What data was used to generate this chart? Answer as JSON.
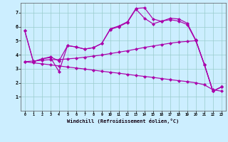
{
  "xlabel": "Windchill (Refroidissement éolien,°C)",
  "bg_color": "#cceeff",
  "line_color": "#aa00aa",
  "grid_color": "#99cccc",
  "xlim": [
    -0.5,
    23.5
  ],
  "ylim": [
    0,
    7.7
  ],
  "xticks": [
    0,
    1,
    2,
    3,
    4,
    5,
    6,
    7,
    8,
    9,
    10,
    11,
    12,
    13,
    14,
    15,
    16,
    17,
    18,
    19,
    20,
    21,
    22,
    23
  ],
  "yticks": [
    1,
    2,
    3,
    4,
    5,
    6,
    7
  ],
  "line1": {
    "x": [
      0,
      1,
      2,
      3,
      4,
      5,
      6,
      7,
      8,
      9,
      10,
      11,
      12,
      13,
      14,
      15,
      16,
      17,
      18,
      19,
      20,
      21,
      22,
      23
    ],
    "y": [
      5.7,
      3.5,
      3.7,
      3.8,
      2.8,
      4.65,
      4.55,
      4.4,
      4.5,
      4.8,
      5.8,
      6.0,
      6.3,
      7.25,
      6.6,
      6.2,
      6.4,
      6.5,
      6.4,
      6.15,
      5.0,
      3.3,
      1.4,
      1.7
    ]
  },
  "line2": {
    "x": [
      0,
      1,
      2,
      3,
      4,
      5,
      6,
      7,
      8,
      9,
      10,
      11,
      12,
      13,
      14,
      15,
      16,
      17,
      18,
      19,
      20,
      21,
      22,
      23
    ],
    "y": [
      5.7,
      3.5,
      3.7,
      3.85,
      3.55,
      4.65,
      4.55,
      4.4,
      4.5,
      4.8,
      5.85,
      6.05,
      6.35,
      7.3,
      7.35,
      6.55,
      6.38,
      6.6,
      6.55,
      6.25,
      5.05,
      3.3,
      1.4,
      1.7
    ]
  },
  "line3": {
    "x": [
      0,
      1,
      2,
      3,
      4,
      5,
      6,
      7,
      8,
      9,
      10,
      11,
      12,
      13,
      14,
      15,
      16,
      17,
      18,
      19,
      20,
      21,
      22,
      23
    ],
    "y": [
      3.5,
      3.55,
      3.6,
      3.65,
      3.65,
      3.7,
      3.75,
      3.82,
      3.9,
      3.98,
      4.08,
      4.18,
      4.28,
      4.4,
      4.52,
      4.62,
      4.72,
      4.82,
      4.9,
      4.95,
      5.0,
      3.3,
      1.4,
      1.7
    ]
  },
  "line4": {
    "x": [
      0,
      1,
      2,
      3,
      4,
      5,
      6,
      7,
      8,
      9,
      10,
      11,
      12,
      13,
      14,
      15,
      16,
      17,
      18,
      19,
      20,
      21,
      22,
      23
    ],
    "y": [
      3.5,
      3.42,
      3.35,
      3.28,
      3.2,
      3.12,
      3.05,
      2.98,
      2.9,
      2.82,
      2.75,
      2.68,
      2.6,
      2.52,
      2.45,
      2.38,
      2.3,
      2.22,
      2.15,
      2.08,
      2.0,
      1.85,
      1.5,
      1.4
    ]
  },
  "marker_size": 2.2,
  "linewidth": 0.85
}
